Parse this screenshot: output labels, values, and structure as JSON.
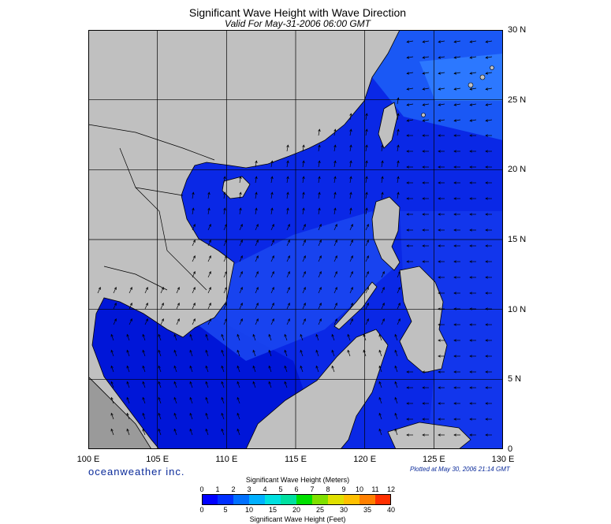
{
  "title": "Significant Wave Height with Wave Direction",
  "subtitle": "Valid For May-31-2006 06:00 GMT",
  "axes": {
    "lon_labels": [
      "100 E",
      "105 E",
      "110 E",
      "115 E",
      "120 E",
      "125 E",
      "130 E"
    ],
    "lat_labels": [
      "30 N",
      "25 N",
      "20 N",
      "15 N",
      "10 N",
      "5 N",
      "0"
    ],
    "lon_range": [
      100,
      130
    ],
    "lat_range": [
      0,
      30
    ],
    "grid": true
  },
  "brand": "oceanweather inc.",
  "plotted": "Plotted at May 30, 2006 21:14 GMT",
  "legend": {
    "meters_label": "Significant Wave Height (Meters)",
    "feet_label": "Significant Wave Height (Feet)",
    "meters_ticks": [
      "0",
      "1",
      "2",
      "3",
      "4",
      "5",
      "6",
      "7",
      "8",
      "9",
      "10",
      "11",
      "12"
    ],
    "feet_ticks": [
      "0",
      "5",
      "10",
      "15",
      "20",
      "25",
      "30",
      "35",
      "40"
    ],
    "colors": [
      "#0000ff",
      "#0030ff",
      "#0070ff",
      "#00b0ff",
      "#00e0e0",
      "#00e0a0",
      "#00e000",
      "#80e000",
      "#e0e000",
      "#ffc000",
      "#ff8000",
      "#ff3000"
    ]
  },
  "colors": {
    "land": "#c0c0c0",
    "sea_low": "#0000e0",
    "sea_mid": "#0a2ae8",
    "sea_high": "#1a50f0",
    "sea_highest": "#2a70ff",
    "grid": "#000000",
    "arrow": "#000000"
  }
}
